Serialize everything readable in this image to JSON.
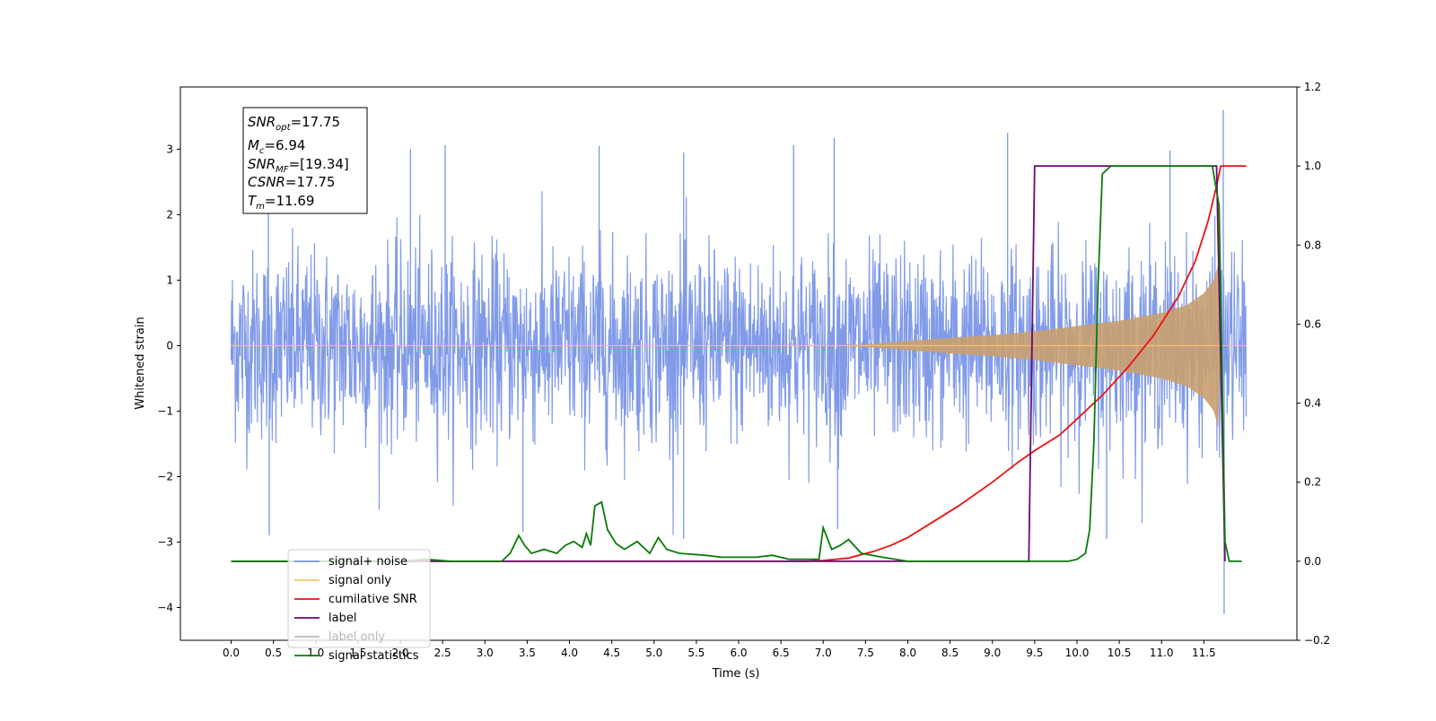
{
  "chart_data": {
    "type": "line",
    "xlabel": "Time (s)",
    "ylabel": "Whitened strain",
    "xlim": [
      -0.6,
      12.6
    ],
    "ylim": [
      -4.5,
      3.95
    ],
    "y2lim": [
      -0.2,
      1.2
    ],
    "x_ticks": [
      "0.0",
      "0.5",
      "1.0",
      "1.5",
      "2.0",
      "2.5",
      "3.0",
      "3.5",
      "4.0",
      "4.5",
      "5.0",
      "5.5",
      "6.0",
      "6.5",
      "7.0",
      "7.5",
      "8.0",
      "8.5",
      "9.0",
      "9.5",
      "10.0",
      "10.5",
      "11.0",
      "11.5"
    ],
    "y_ticks": [
      "3",
      "2",
      "1",
      "0",
      "−1",
      "−2",
      "−3",
      "−4"
    ],
    "y2_ticks": [
      "1.2",
      "1.0",
      "0.8",
      "0.6",
      "0.4",
      "0.2",
      "0.0",
      "−0.2"
    ],
    "annotation": {
      "snr_opt": "=17.75",
      "mc": "=6.94",
      "snr_mf": "=[19.34]",
      "csnr": "=17.75",
      "tm": "=11.69"
    },
    "legend": {
      "placement": "lower-left",
      "entries": [
        {
          "label": "signal+ noise",
          "color": "#7a96e8"
        },
        {
          "label": "signal only",
          "color": "#ffc46b"
        },
        {
          "label": "cumilative SNR",
          "color": "#ee1111"
        },
        {
          "label": "label",
          "color": "#6a0a6e"
        },
        {
          "label": "label only",
          "color": "#b8b8b8"
        },
        {
          "label": "signal statistics",
          "color": "#0a7a0a"
        }
      ]
    },
    "series": [
      {
        "name": "signal+ noise",
        "axis": "left",
        "t_start": 0.0,
        "t_end": 12.0,
        "std": 0.72,
        "spikes": [
          {
            "x": 0.44,
            "y": 2.9
          },
          {
            "x": 0.45,
            "y": -2.9
          },
          {
            "x": 2.12,
            "y": 3.0
          },
          {
            "x": 2.53,
            "y": 3.06
          },
          {
            "x": 4.35,
            "y": 3.05
          },
          {
            "x": 5.35,
            "y": 2.95
          },
          {
            "x": 6.65,
            "y": 3.06
          },
          {
            "x": 7.13,
            "y": 3.17
          },
          {
            "x": 9.18,
            "y": 3.25
          },
          {
            "x": 10.35,
            "y": -2.95
          },
          {
            "x": 11.1,
            "y": 2.98
          },
          {
            "x": 11.73,
            "y": 3.6
          },
          {
            "x": 11.74,
            "y": -4.1
          },
          {
            "x": 3.45,
            "y": -2.85
          },
          {
            "x": 5.35,
            "y": -2.95
          },
          {
            "x": 7.17,
            "y": -2.8
          }
        ]
      },
      {
        "name": "signal only",
        "axis": "left",
        "envelope": [
          {
            "x": 0.0,
            "y": 0.0
          },
          {
            "x": 7.2,
            "y": 0.01
          },
          {
            "x": 7.5,
            "y": 0.02
          },
          {
            "x": 8.0,
            "y": 0.07
          },
          {
            "x": 8.5,
            "y": 0.12
          },
          {
            "x": 9.0,
            "y": 0.16
          },
          {
            "x": 9.5,
            "y": 0.22
          },
          {
            "x": 10.0,
            "y": 0.3
          },
          {
            "x": 10.5,
            "y": 0.38
          },
          {
            "x": 11.0,
            "y": 0.5
          },
          {
            "x": 11.3,
            "y": 0.62
          },
          {
            "x": 11.5,
            "y": 0.8
          },
          {
            "x": 11.62,
            "y": 1.0
          },
          {
            "x": 11.68,
            "y": 1.3
          },
          {
            "x": 11.7,
            "y": 0.0
          },
          {
            "x": 12.0,
            "y": 0.0
          }
        ]
      },
      {
        "name": "cumilative SNR",
        "axis": "right",
        "points": [
          {
            "x": 0.0,
            "y": 0.0
          },
          {
            "x": 6.8,
            "y": 0.0
          },
          {
            "x": 7.0,
            "y": 0.002
          },
          {
            "x": 7.3,
            "y": 0.008
          },
          {
            "x": 7.6,
            "y": 0.025
          },
          {
            "x": 7.8,
            "y": 0.04
          },
          {
            "x": 8.0,
            "y": 0.06
          },
          {
            "x": 8.3,
            "y": 0.1
          },
          {
            "x": 8.6,
            "y": 0.14
          },
          {
            "x": 9.0,
            "y": 0.2
          },
          {
            "x": 9.3,
            "y": 0.25
          },
          {
            "x": 9.5,
            "y": 0.28
          },
          {
            "x": 9.8,
            "y": 0.32
          },
          {
            "x": 10.0,
            "y": 0.36
          },
          {
            "x": 10.3,
            "y": 0.42
          },
          {
            "x": 10.6,
            "y": 0.49
          },
          {
            "x": 10.9,
            "y": 0.57
          },
          {
            "x": 11.2,
            "y": 0.67
          },
          {
            "x": 11.4,
            "y": 0.76
          },
          {
            "x": 11.55,
            "y": 0.86
          },
          {
            "x": 11.65,
            "y": 0.95
          },
          {
            "x": 11.7,
            "y": 1.0
          },
          {
            "x": 12.0,
            "y": 1.0
          }
        ]
      },
      {
        "name": "label",
        "axis": "right",
        "points": [
          {
            "x": 0.0,
            "y": 0.0
          },
          {
            "x": 9.43,
            "y": 0.0
          },
          {
            "x": 9.5,
            "y": 1.0
          },
          {
            "x": 11.65,
            "y": 1.0
          },
          {
            "x": 11.75,
            "y": 0.0
          }
        ]
      },
      {
        "name": "signal statistics",
        "axis": "right",
        "points": [
          {
            "x": 0.0,
            "y": 0.0
          },
          {
            "x": 2.0,
            "y": 0.0
          },
          {
            "x": 2.3,
            "y": 0.005
          },
          {
            "x": 2.6,
            "y": 0.0
          },
          {
            "x": 3.2,
            "y": 0.0
          },
          {
            "x": 3.3,
            "y": 0.02
          },
          {
            "x": 3.4,
            "y": 0.065
          },
          {
            "x": 3.47,
            "y": 0.04
          },
          {
            "x": 3.55,
            "y": 0.02
          },
          {
            "x": 3.7,
            "y": 0.03
          },
          {
            "x": 3.85,
            "y": 0.02
          },
          {
            "x": 3.95,
            "y": 0.04
          },
          {
            "x": 4.05,
            "y": 0.05
          },
          {
            "x": 4.15,
            "y": 0.035
          },
          {
            "x": 4.2,
            "y": 0.07
          },
          {
            "x": 4.25,
            "y": 0.04
          },
          {
            "x": 4.3,
            "y": 0.14
          },
          {
            "x": 4.38,
            "y": 0.15
          },
          {
            "x": 4.45,
            "y": 0.08
          },
          {
            "x": 4.55,
            "y": 0.045
          },
          {
            "x": 4.65,
            "y": 0.03
          },
          {
            "x": 4.8,
            "y": 0.05
          },
          {
            "x": 4.95,
            "y": 0.02
          },
          {
            "x": 5.05,
            "y": 0.06
          },
          {
            "x": 5.15,
            "y": 0.03
          },
          {
            "x": 5.3,
            "y": 0.02
          },
          {
            "x": 5.6,
            "y": 0.015
          },
          {
            "x": 5.8,
            "y": 0.01
          },
          {
            "x": 6.2,
            "y": 0.01
          },
          {
            "x": 6.4,
            "y": 0.015
          },
          {
            "x": 6.6,
            "y": 0.005
          },
          {
            "x": 6.95,
            "y": 0.005
          },
          {
            "x": 7.0,
            "y": 0.085
          },
          {
            "x": 7.1,
            "y": 0.03
          },
          {
            "x": 7.2,
            "y": 0.04
          },
          {
            "x": 7.3,
            "y": 0.055
          },
          {
            "x": 7.45,
            "y": 0.02
          },
          {
            "x": 7.7,
            "y": 0.01
          },
          {
            "x": 8.0,
            "y": 0.0
          },
          {
            "x": 9.9,
            "y": 0.0
          },
          {
            "x": 10.0,
            "y": 0.005
          },
          {
            "x": 10.1,
            "y": 0.02
          },
          {
            "x": 10.15,
            "y": 0.08
          },
          {
            "x": 10.2,
            "y": 0.3
          },
          {
            "x": 10.25,
            "y": 0.7
          },
          {
            "x": 10.3,
            "y": 0.98
          },
          {
            "x": 10.4,
            "y": 1.0
          },
          {
            "x": 11.6,
            "y": 1.0
          },
          {
            "x": 11.68,
            "y": 0.9
          },
          {
            "x": 11.75,
            "y": 0.05
          },
          {
            "x": 11.8,
            "y": 0.0
          },
          {
            "x": 11.95,
            "y": 0.0
          }
        ]
      }
    ]
  }
}
